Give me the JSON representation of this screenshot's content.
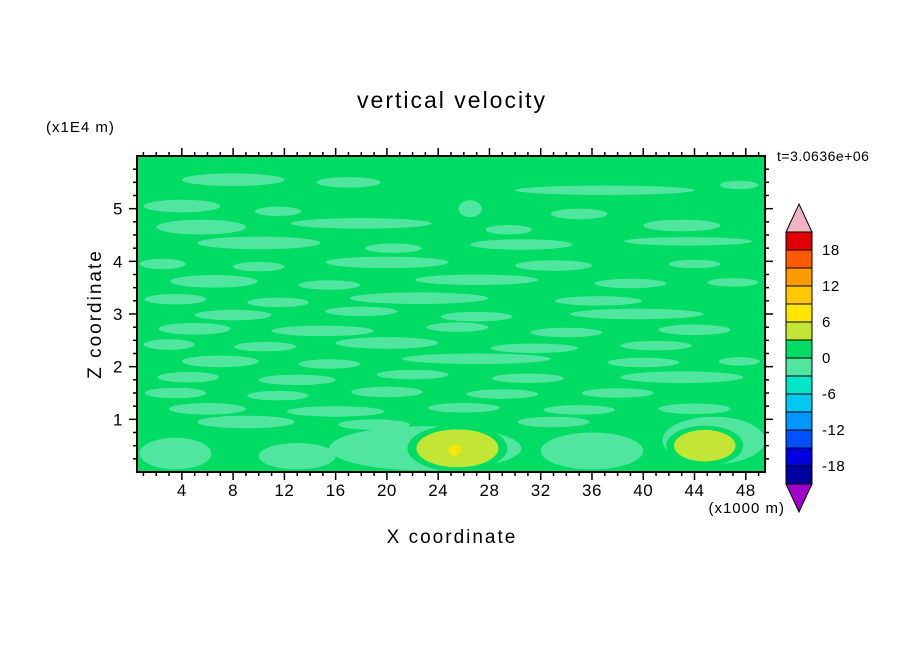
{
  "chart": {
    "title": "vertical velocity",
    "timestamp": "t=3.0636e+06",
    "x_axis_label": "X coordinate",
    "x_axis_unit": "(x1000 m)",
    "y_axis_label": "Z coordinate",
    "y_axis_unit": "(x1E4 m)"
  },
  "chart_data": {
    "type": "heatmap",
    "subtype": "filled-contour",
    "title": "vertical velocity",
    "time_annotation": "t=3.0636e+06",
    "xlabel": "X coordinate",
    "x_units": "x1000 m",
    "ylabel": "Z coordinate",
    "y_units": "x1E4 m",
    "xlim": [
      0.5,
      49.5
    ],
    "ylim": [
      0,
      6
    ],
    "xticks": [
      4,
      8,
      12,
      16,
      20,
      24,
      28,
      32,
      36,
      40,
      44,
      48
    ],
    "x_minor_step": 1,
    "yticks": [
      1,
      2,
      3,
      4,
      5
    ],
    "y_minor_step": 0.25,
    "contour_interval": 3,
    "legend_position": "right",
    "grid": false,
    "colorbar": {
      "labels": [
        18,
        12,
        6,
        0,
        -6,
        -12,
        -18
      ],
      "segment_values_top_to_bottom": [
        "18..21",
        "15..18",
        "12..15",
        "9..12",
        "6..9",
        "3..6",
        "0..3",
        "-3..0",
        "-6..-3",
        "-9..-6",
        "-12..-9",
        "-15..-12",
        "-18..-15",
        "-21..-18"
      ],
      "segment_colors_top_to_bottom": [
        "#e10000",
        "#ff5a00",
        "#ff9b00",
        "#ffc800",
        "#ffe600",
        "#c3e636",
        "#00dc64",
        "#50e6a0",
        "#00e6c8",
        "#00c8f0",
        "#0096ff",
        "#0050ff",
        "#0000e1",
        "#0000a0"
      ],
      "above_range_color": "#f0b4c3",
      "below_range_color": "#a000c8"
    },
    "band_colors": {
      "6..9": "#ffe600",
      "3..6": "#c3e636",
      "0..3": "#00dc64",
      "-3..0": "#50e6a0"
    },
    "background_band": "0..3",
    "features_format": [
      "x",
      "z",
      "rx",
      "rz",
      "band (default -3..0)"
    ],
    "features": [
      [
        8,
        5.55,
        4.0,
        0.12
      ],
      [
        17,
        5.5,
        2.5,
        0.1
      ],
      [
        37,
        5.35,
        7.0,
        0.09
      ],
      [
        47.5,
        5.45,
        1.5,
        0.08
      ],
      [
        4,
        5.05,
        3.0,
        0.12
      ],
      [
        11.5,
        4.95,
        1.8,
        0.09
      ],
      [
        26.5,
        5.0,
        0.9,
        0.16
      ],
      [
        35,
        4.9,
        2.2,
        0.1
      ],
      [
        5.5,
        4.65,
        3.5,
        0.14
      ],
      [
        18,
        4.72,
        5.5,
        0.1
      ],
      [
        29.5,
        4.6,
        1.8,
        0.09
      ],
      [
        43,
        4.68,
        3.0,
        0.11
      ],
      [
        10,
        4.35,
        4.8,
        0.12
      ],
      [
        20.5,
        4.25,
        2.2,
        0.09
      ],
      [
        30.5,
        4.32,
        4.0,
        0.1
      ],
      [
        43.5,
        4.38,
        5.0,
        0.08
      ],
      [
        2.5,
        3.95,
        1.8,
        0.1
      ],
      [
        10,
        3.9,
        2.0,
        0.09
      ],
      [
        20,
        3.98,
        4.8,
        0.11
      ],
      [
        33,
        3.92,
        3.0,
        0.1
      ],
      [
        44,
        3.95,
        2.0,
        0.08
      ],
      [
        6.5,
        3.62,
        3.4,
        0.12
      ],
      [
        15.5,
        3.55,
        2.4,
        0.09
      ],
      [
        27,
        3.65,
        4.8,
        0.1
      ],
      [
        39,
        3.58,
        2.8,
        0.09
      ],
      [
        47,
        3.6,
        2.0,
        0.08
      ],
      [
        3.5,
        3.28,
        2.4,
        0.1
      ],
      [
        11.5,
        3.22,
        2.4,
        0.09
      ],
      [
        22.5,
        3.3,
        5.4,
        0.11
      ],
      [
        36.5,
        3.25,
        3.4,
        0.09
      ],
      [
        8,
        2.98,
        3.0,
        0.1
      ],
      [
        18,
        3.05,
        2.8,
        0.09
      ],
      [
        27,
        2.95,
        2.8,
        0.09
      ],
      [
        39.5,
        3.0,
        5.2,
        0.1
      ],
      [
        5,
        2.72,
        2.8,
        0.11
      ],
      [
        15,
        2.68,
        4.0,
        0.1
      ],
      [
        25.5,
        2.75,
        2.4,
        0.09
      ],
      [
        34,
        2.65,
        2.8,
        0.09
      ],
      [
        44,
        2.7,
        2.8,
        0.1
      ],
      [
        3,
        2.42,
        2.0,
        0.1
      ],
      [
        10.5,
        2.38,
        2.4,
        0.09
      ],
      [
        20,
        2.45,
        4.0,
        0.11
      ],
      [
        31.5,
        2.35,
        3.4,
        0.09
      ],
      [
        41,
        2.4,
        2.8,
        0.09
      ],
      [
        7,
        2.1,
        3.0,
        0.11
      ],
      [
        15.5,
        2.05,
        2.4,
        0.09
      ],
      [
        27,
        2.15,
        5.8,
        0.1
      ],
      [
        40,
        2.08,
        2.8,
        0.09
      ],
      [
        47.5,
        2.1,
        1.6,
        0.08
      ],
      [
        4.5,
        1.8,
        2.4,
        0.1
      ],
      [
        13,
        1.75,
        3.0,
        0.1
      ],
      [
        22,
        1.85,
        2.8,
        0.09
      ],
      [
        31,
        1.78,
        2.8,
        0.09
      ],
      [
        43,
        1.8,
        4.8,
        0.11
      ],
      [
        3.5,
        1.5,
        2.4,
        0.1
      ],
      [
        11.5,
        1.45,
        2.4,
        0.09
      ],
      [
        20,
        1.52,
        2.8,
        0.1
      ],
      [
        29,
        1.48,
        2.8,
        0.09
      ],
      [
        38,
        1.5,
        2.8,
        0.09
      ],
      [
        6,
        1.2,
        3.0,
        0.11
      ],
      [
        16,
        1.15,
        3.8,
        0.1
      ],
      [
        26,
        1.22,
        2.8,
        0.09
      ],
      [
        35,
        1.18,
        2.8,
        0.09
      ],
      [
        44,
        1.2,
        2.8,
        0.1
      ],
      [
        9,
        0.95,
        3.8,
        0.12
      ],
      [
        19,
        0.9,
        2.8,
        0.1
      ],
      [
        33,
        0.95,
        2.8,
        0.1
      ],
      [
        23,
        0.45,
        7.5,
        0.42
      ],
      [
        36,
        0.4,
        4.0,
        0.35
      ],
      [
        45.5,
        0.6,
        4.0,
        0.45
      ],
      [
        3.5,
        0.35,
        2.8,
        0.3
      ],
      [
        13,
        0.3,
        3.0,
        0.25
      ],
      [
        25.5,
        0.45,
        3.9,
        0.44,
        "0..3"
      ],
      [
        44.8,
        0.5,
        3.0,
        0.38,
        "0..3"
      ],
      [
        25.5,
        0.45,
        3.2,
        0.36,
        "3..6"
      ],
      [
        44.8,
        0.5,
        2.4,
        0.3,
        "3..6"
      ],
      [
        25.3,
        0.42,
        0.45,
        0.1,
        "6..9"
      ]
    ]
  }
}
